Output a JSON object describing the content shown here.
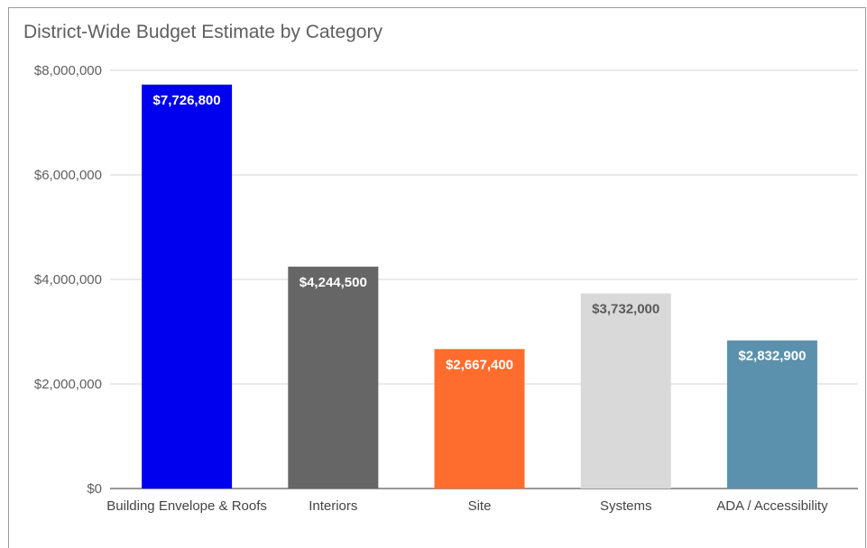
{
  "chart_data": {
    "type": "bar",
    "title": "District-Wide Budget Estimate by Category",
    "xlabel": "",
    "ylabel": "",
    "categories": [
      "Building Envelope & Roofs",
      "Interiors",
      "Site",
      "Systems",
      "ADA / Accessibility"
    ],
    "values": [
      7726800,
      4244500,
      2667400,
      3732000,
      2832900
    ],
    "data_labels": [
      "$7,726,800",
      "$4,244,500",
      "$2,667,400",
      "$3,732,000",
      "$2,832,900"
    ],
    "bar_colors": [
      "#0000ee",
      "#666666",
      "#ff6d2e",
      "#d9d9d9",
      "#5b91ad"
    ],
    "label_colors": [
      "#ffffff",
      "#ffffff",
      "#ffffff",
      "#595959",
      "#ffffff"
    ],
    "ylim": [
      0,
      8000000
    ],
    "yticks": [
      0,
      2000000,
      4000000,
      6000000,
      8000000
    ],
    "ytick_labels": [
      "$0",
      "$2,000,000",
      "$4,000,000",
      "$6,000,000",
      "$8,000,000"
    ],
    "grid": true,
    "legend": "none"
  }
}
